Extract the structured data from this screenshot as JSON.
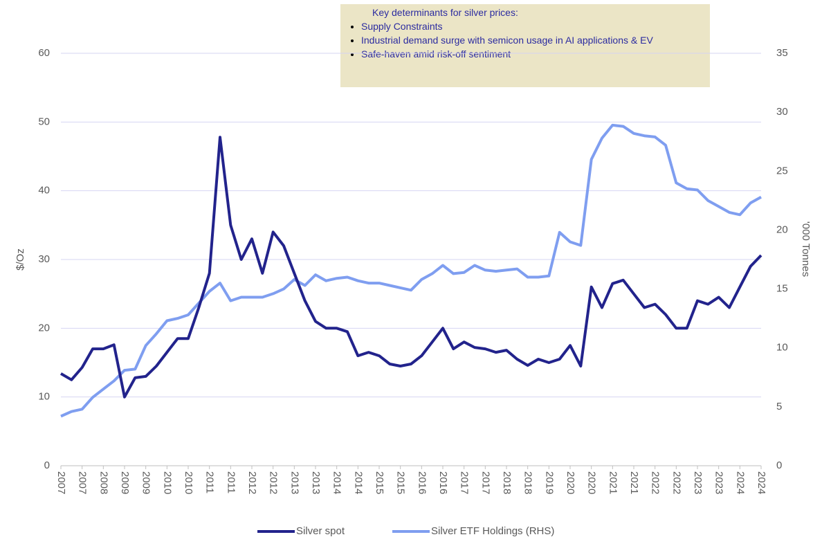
{
  "chart_data": {
    "type": "line",
    "annotation": {
      "title": "Key determinants for silver prices:",
      "items": [
        "Supply Constraints",
        "Industrial demand surge with semicon usage in AI applications & EV",
        "Safe-haven amid risk-off sentiment"
      ]
    },
    "ylabel": "$/Oz",
    "y2label": "'000 Tonnes",
    "categories": [
      "2007",
      null,
      "2007",
      null,
      "2008",
      null,
      "2009",
      null,
      "2009",
      null,
      "2010",
      null,
      "2010",
      null,
      "2011",
      null,
      "2011",
      null,
      "2012",
      null,
      "2012",
      null,
      "2013",
      null,
      "2013",
      null,
      "2014",
      null,
      "2014",
      null,
      "2015",
      null,
      "2015",
      null,
      "2016",
      null,
      "2016",
      null,
      "2017",
      null,
      "2017",
      null,
      "2018",
      null,
      "2018",
      null,
      "2019",
      null,
      "2020",
      null,
      "2020",
      null,
      "2021",
      null,
      "2021",
      null,
      "2022",
      null,
      "2022",
      null,
      "2023",
      null,
      "2023",
      null,
      "2024",
      null,
      "2024"
    ],
    "series": [
      {
        "name": "Silver spot",
        "color": "#22238c",
        "values": [
          13.4,
          12.5,
          14.3,
          17,
          17,
          17.6,
          10,
          12.8,
          13,
          14.5,
          16.5,
          18.5,
          18.5,
          23,
          28,
          47.8,
          35,
          30,
          33,
          28,
          34,
          32,
          28,
          24,
          21,
          20,
          20,
          19.5,
          16,
          16.5,
          16,
          14.8,
          14.5,
          14.8,
          16,
          18,
          20,
          17,
          18,
          17.2,
          17,
          16.5,
          16.8,
          15.5,
          14.6,
          15.5,
          15,
          15.5,
          17.5,
          14.5,
          26,
          23,
          26.5,
          27,
          25,
          23,
          23.5,
          22,
          20,
          20,
          24,
          23.5,
          24.5,
          23,
          26,
          29,
          30.6
        ]
      },
      {
        "name": "Silver ETF Holdings (RHS)",
        "color": "#7f9ef0",
        "axis": "y2",
        "values": [
          4.2,
          4.6,
          4.8,
          5.8,
          6.5,
          7.2,
          8.1,
          8.2,
          10.2,
          11.2,
          12.3,
          12.5,
          12.8,
          13.8,
          14.8,
          15.5,
          14,
          14.3,
          14.3,
          14.3,
          14.6,
          15,
          15.8,
          15.3,
          16.2,
          15.7,
          15.9,
          16,
          15.7,
          15.5,
          15.5,
          15.3,
          15.1,
          14.9,
          15.8,
          16.3,
          17,
          16.3,
          16.4,
          17,
          16.6,
          16.5,
          16.6,
          16.7,
          16,
          16,
          16.1,
          19.8,
          19,
          18.7,
          26,
          27.8,
          28.9,
          28.8,
          28.2,
          28,
          27.9,
          27.2,
          24,
          23.5,
          23.4,
          22.5,
          22,
          21.5,
          21.3,
          22.3,
          22.8
        ]
      }
    ],
    "ylim": [
      0,
      60
    ],
    "yticks": [
      0,
      10,
      20,
      30,
      40,
      50,
      60
    ],
    "y2lim": [
      0,
      35
    ],
    "y2ticks": [
      0,
      5,
      10,
      15,
      20,
      25,
      30,
      35
    ],
    "grid": true
  }
}
